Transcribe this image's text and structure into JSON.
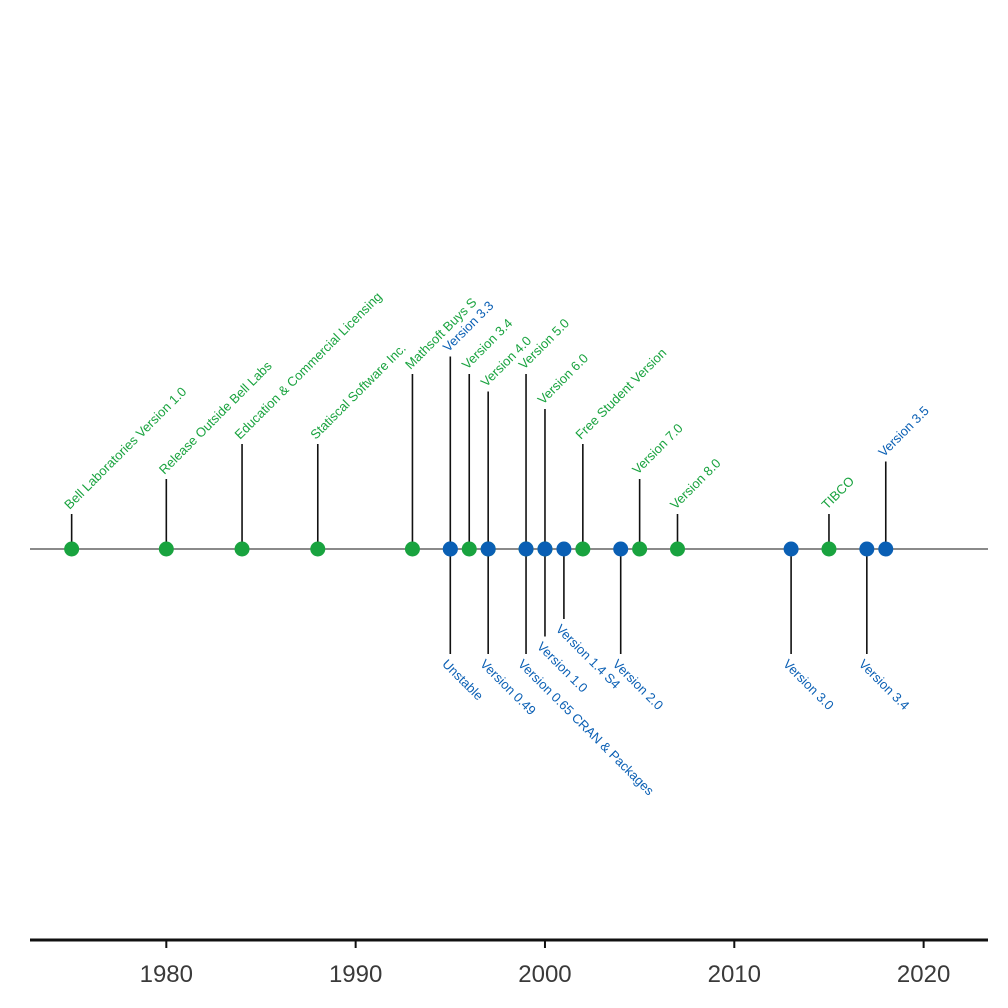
{
  "chart_data": {
    "type": "scatter",
    "xlim": [
      1972.8,
      2023.4
    ],
    "x_ticks": [
      1980,
      1990,
      2000,
      2010,
      2020
    ],
    "grid": false,
    "legend": "none",
    "colors": {
      "green": "#19a33f",
      "blue": "#0a5fb4",
      "stem": "#111111",
      "axis": "#111111",
      "baseline": "#444444"
    },
    "series": [
      {
        "color": "green",
        "events": [
          {
            "x": 1975,
            "label": "Bell Laboratories Version 1.0",
            "level": 1.0
          },
          {
            "x": 1980,
            "label": "Release Outside Bell Labs",
            "level": 2.0
          },
          {
            "x": 1984,
            "label": "Education & Commercial Licensing",
            "level": 3.0
          },
          {
            "x": 1988,
            "label": "Statiscal Software Inc.",
            "level": 3.0
          },
          {
            "x": 1993,
            "label": "Mathsoft Buys S",
            "level": 5.0
          },
          {
            "x": 1996,
            "label": "Version 3.4",
            "level": 5.0
          },
          {
            "x": 1997,
            "label": "Version 4.0",
            "level": 4.5
          },
          {
            "x": 1999,
            "label": "Version 5.0",
            "level": 5.0
          },
          {
            "x": 2000,
            "label": "Version 6.0",
            "level": 4.0
          },
          {
            "x": 2002,
            "label": "Free Student Version",
            "level": 3.0
          },
          {
            "x": 2005,
            "label": "Version 7.0",
            "level": 2.0
          },
          {
            "x": 2007,
            "label": "Version 8.0",
            "level": 1.0
          },
          {
            "x": 2015,
            "label": "TIBCO",
            "level": 1.0
          }
        ]
      },
      {
        "color": "blue",
        "events": [
          {
            "x": 1995,
            "label": "Version 3.3",
            "level": 5.5
          },
          {
            "x": 1995,
            "label": "Unstable",
            "level": -3.0
          },
          {
            "x": 1997,
            "label": "Version 0.49",
            "level": -3.0
          },
          {
            "x": 1999,
            "label": "Version 0.65 CRAN & Packages",
            "level": -3.0
          },
          {
            "x": 2000,
            "label": "Version 1.0",
            "level": -2.5
          },
          {
            "x": 2001,
            "label": "Version 1.4 S4",
            "level": -2.0
          },
          {
            "x": 2004,
            "label": "Version 2.0",
            "level": -3.0
          },
          {
            "x": 2013,
            "label": "Version 3.0",
            "level": -3.0
          },
          {
            "x": 2017,
            "label": "Version 3.4",
            "level": -3.0
          },
          {
            "x": 2018,
            "label": "Version 3.5",
            "level": 2.5
          }
        ]
      }
    ]
  }
}
